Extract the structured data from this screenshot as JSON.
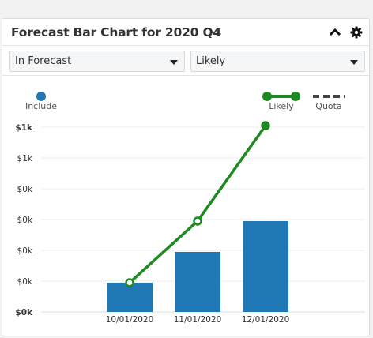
{
  "dashlet": {
    "title": "Forecast Bar Chart for 2020 Q4",
    "filter1": "In Forecast",
    "filter2": "Likely"
  },
  "legend": {
    "include": "Include",
    "likely": "Likely",
    "quota": "Quota"
  },
  "colors": {
    "bar": "#1f77b4",
    "line": "#1e8a21",
    "quota": "#444444"
  },
  "chart_data": {
    "type": "bar",
    "categories": [
      "10/01/2020",
      "11/01/2020",
      "12/01/2020"
    ],
    "y_tick_labels": [
      "$0k",
      "$0k",
      "$0k",
      "$0k",
      "$0k",
      "$1k",
      "$1k"
    ],
    "series": [
      {
        "name": "Include",
        "type": "bar",
        "values": [
          190,
          390,
          590
        ]
      },
      {
        "name": "Likely",
        "type": "line",
        "values": [
          190,
          590,
          1210
        ]
      }
    ],
    "ylim": [
      0,
      1200
    ],
    "grid": true,
    "legend_position": "top"
  }
}
